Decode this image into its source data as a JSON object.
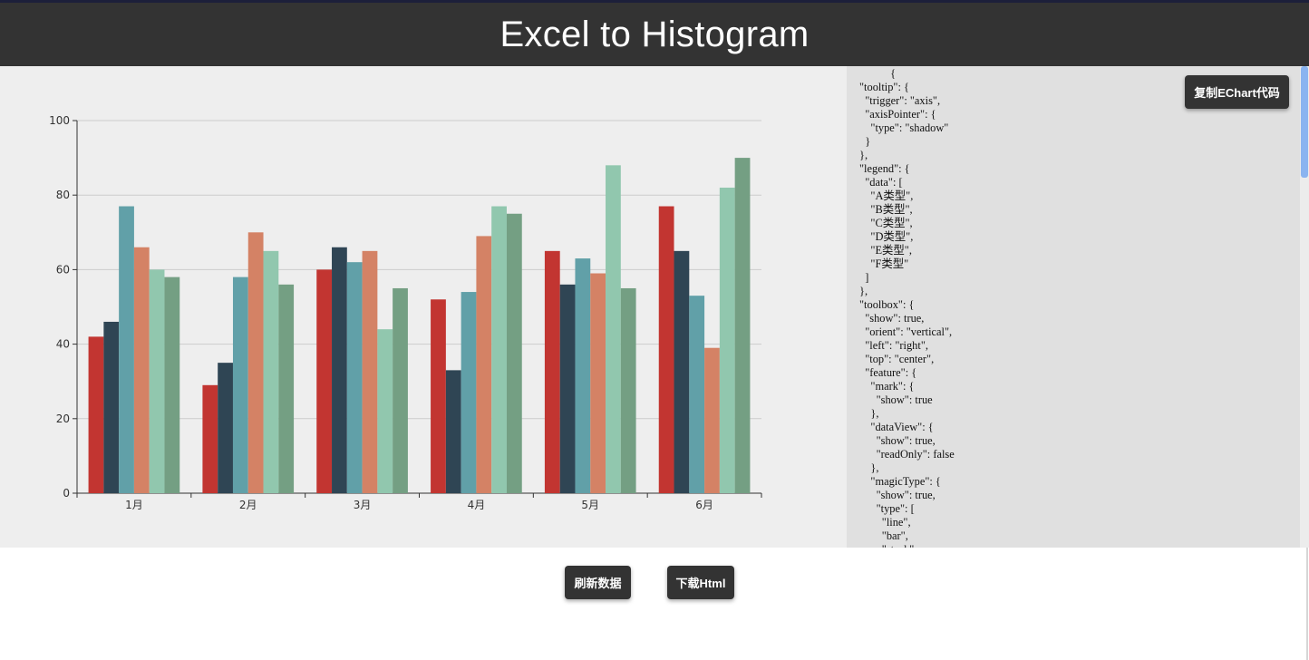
{
  "header": {
    "title": "Excel to Histogram"
  },
  "buttons": {
    "copy_echart": "复制EChart代码",
    "refresh": "刷新数据",
    "download_html": "下载Html"
  },
  "code_text": "           {\n\"tooltip\": {\n  \"trigger\": \"axis\",\n  \"axisPointer\": {\n    \"type\": \"shadow\"\n  }\n},\n\"legend\": {\n  \"data\": [\n    \"A类型\",\n    \"B类型\",\n    \"C类型\",\n    \"D类型\",\n    \"E类型\",\n    \"F类型\"\n  ]\n},\n\"toolbox\": {\n  \"show\": true,\n  \"orient\": \"vertical\",\n  \"left\": \"right\",\n  \"top\": \"center\",\n  \"feature\": {\n    \"mark\": {\n      \"show\": true\n    },\n    \"dataView\": {\n      \"show\": true,\n      \"readOnly\": false\n    },\n    \"magicType\": {\n      \"show\": true,\n      \"type\": [\n        \"line\",\n        \"bar\",\n        \"stack\"",
  "chart_data": {
    "type": "bar",
    "categories": [
      "1月",
      "2月",
      "3月",
      "4月",
      "5月",
      "6月"
    ],
    "ylim": [
      0,
      100
    ],
    "yticks": [
      0,
      20,
      40,
      60,
      80,
      100
    ],
    "grid": true,
    "series": [
      {
        "name": "A类型",
        "color": "#c23531",
        "values": [
          42,
          29,
          60,
          52,
          65,
          77
        ]
      },
      {
        "name": "B类型",
        "color": "#2f4554",
        "values": [
          46,
          35,
          66,
          33,
          56,
          65
        ]
      },
      {
        "name": "C类型",
        "color": "#61a0a8",
        "values": [
          77,
          58,
          62,
          54,
          63,
          53
        ]
      },
      {
        "name": "D类型",
        "color": "#d48265",
        "values": [
          66,
          70,
          65,
          69,
          59,
          39
        ]
      },
      {
        "name": "E类型",
        "color": "#91c7ae",
        "values": [
          60,
          65,
          44,
          77,
          88,
          82
        ]
      },
      {
        "name": "F类型",
        "color": "#749f83",
        "values": [
          58,
          56,
          55,
          75,
          55,
          90
        ]
      }
    ]
  }
}
